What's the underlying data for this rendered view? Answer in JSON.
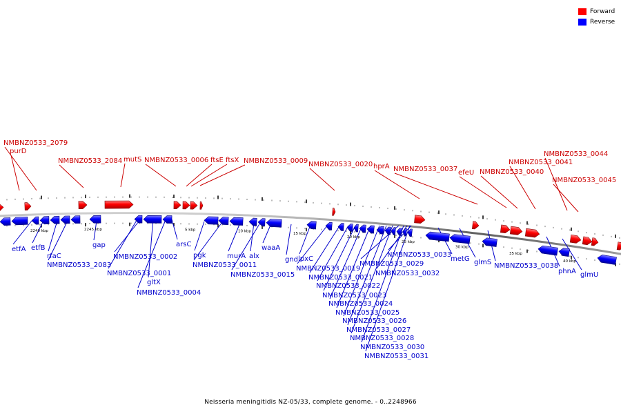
{
  "legend": {
    "forward_label": "Forward",
    "reverse_label": "Reverse",
    "forward_color": "#ff0000",
    "reverse_color": "#0000ff"
  },
  "caption": "Neisseria meningitidis NZ-05/33, complete genome. - 0..2248966",
  "scale_labels": [
    "2240 kbp",
    "2245 kbp",
    "5 kbp",
    "10 kbp",
    "15 kbp",
    "20 kbp",
    "25 kbp",
    "30 kbp",
    "35 kbp",
    "40 kbp"
  ],
  "forward_genes": [
    "NMBNZ0533_2079",
    "purD",
    "NMBNZ0533_2084",
    "mutS",
    "NMBNZ0533_0006",
    "ftsE",
    "ftsX",
    "NMBNZ0533_0009",
    "NMBNZ0533_0020",
    "hprA",
    "NMBNZ0533_0037",
    "efeU",
    "NMBNZ0533_0040",
    "NMBNZ0533_0041",
    "NMBNZ0533_0044",
    "NMBNZ0533_0045"
  ],
  "reverse_genes": [
    "etfA",
    "etfB",
    "rfaC",
    "NMBNZ0533_2083",
    "gap",
    "NMBNZ0533_0002",
    "NMBNZ0533_0001",
    "gltX",
    "NMBNZ0533_0004",
    "arsC",
    "pgk",
    "NMBNZ0533_0011",
    "murA",
    "alx",
    "NMBNZ0533_0015",
    "waaA",
    "gnd",
    "lpxC",
    "NMBNZ0533_0019",
    "NMBNZ0533_0021",
    "NMBNZ0533_0022",
    "NMBNZ0533_0023",
    "NMBNZ0533_0024",
    "NMBNZ0533_0025",
    "NMBNZ0533_0026",
    "NMBNZ0533_0027",
    "NMBNZ0533_0028",
    "NMBNZ0533_0029",
    "NMBNZ0533_0030",
    "NMBNZ0533_0031",
    "NMBNZ0533_0032",
    "NMBNZ0533_0033",
    "metG",
    "glmS",
    "NMBNZ0533_0038",
    "phnA",
    "glmU"
  ]
}
